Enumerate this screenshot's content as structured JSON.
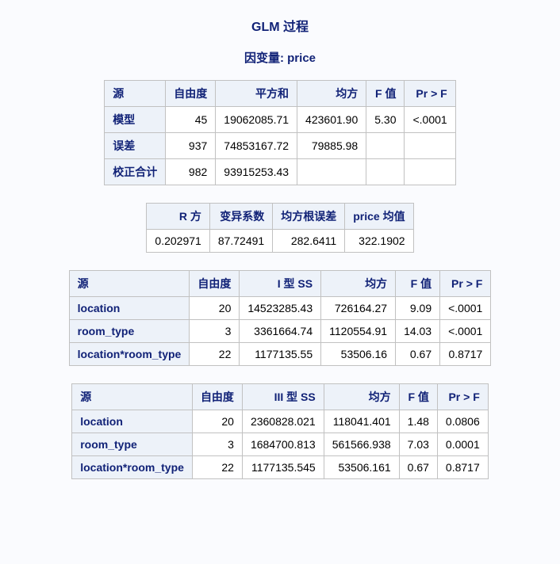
{
  "page": {
    "title": "GLM 过程",
    "subtitle": "因变量: price",
    "background_color": "#fafbfe",
    "header_bg": "#edf2f9",
    "border_color": "#c1c1c1",
    "text_color": "#112277",
    "data_text_color": "#000000",
    "title_fontsize": 16,
    "body_fontsize": 14
  },
  "anova_table": {
    "headers": {
      "source": "源",
      "df": "自由度",
      "ss": "平方和",
      "ms": "均方",
      "f": "F 值",
      "p": "Pr > F"
    },
    "rows": {
      "model": {
        "label": "模型",
        "df": "45",
        "ss": "19062085.71",
        "ms": "423601.90",
        "f": "5.30",
        "p": "<.0001"
      },
      "error": {
        "label": "误差",
        "df": "937",
        "ss": "74853167.72",
        "ms": "79885.98",
        "f": "",
        "p": ""
      },
      "total": {
        "label": "校正合计",
        "df": "982",
        "ss": "93915253.43",
        "ms": "",
        "f": "",
        "p": ""
      }
    }
  },
  "fit_table": {
    "headers": {
      "rsq": "R 方",
      "cv": "变异系数",
      "rmse": "均方根误差",
      "mean": "price 均值"
    },
    "row": {
      "rsq": "0.202971",
      "cv": "87.72491",
      "rmse": "282.6411",
      "mean": "322.1902"
    }
  },
  "type1_table": {
    "headers": {
      "source": "源",
      "df": "自由度",
      "ss": "I 型 SS",
      "ms": "均方",
      "f": "F 值",
      "p": "Pr > F"
    },
    "rows": {
      "r0": {
        "label": "location",
        "df": "20",
        "ss": "14523285.43",
        "ms": "726164.27",
        "f": "9.09",
        "p": "<.0001"
      },
      "r1": {
        "label": "room_type",
        "df": "3",
        "ss": "3361664.74",
        "ms": "1120554.91",
        "f": "14.03",
        "p": "<.0001"
      },
      "r2": {
        "label": "location*room_type",
        "df": "22",
        "ss": "1177135.55",
        "ms": "53506.16",
        "f": "0.67",
        "p": "0.8717"
      }
    }
  },
  "type3_table": {
    "headers": {
      "source": "源",
      "df": "自由度",
      "ss": "III 型 SS",
      "ms": "均方",
      "f": "F 值",
      "p": "Pr > F"
    },
    "rows": {
      "r0": {
        "label": "location",
        "df": "20",
        "ss": "2360828.021",
        "ms": "118041.401",
        "f": "1.48",
        "p": "0.0806"
      },
      "r1": {
        "label": "room_type",
        "df": "3",
        "ss": "1684700.813",
        "ms": "561566.938",
        "f": "7.03",
        "p": "0.0001"
      },
      "r2": {
        "label": "location*room_type",
        "df": "22",
        "ss": "1177135.545",
        "ms": "53506.161",
        "f": "0.67",
        "p": "0.8717"
      }
    }
  }
}
